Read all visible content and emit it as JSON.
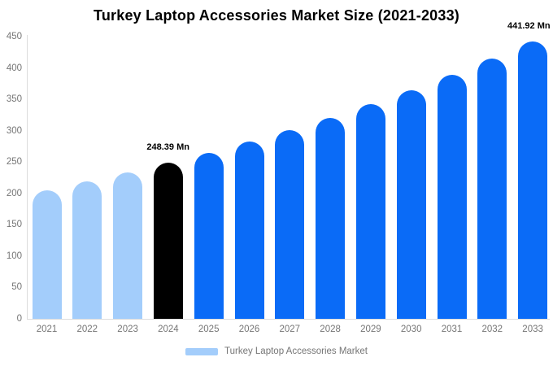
{
  "chart_data": {
    "type": "bar",
    "title": "Turkey Laptop Accessories Market Size (2021-2033)",
    "xlabel": "",
    "ylabel": "",
    "categories": [
      "2021",
      "2022",
      "2023",
      "2024",
      "2025",
      "2026",
      "2027",
      "2028",
      "2029",
      "2030",
      "2031",
      "2032",
      "2033"
    ],
    "values": [
      205.0,
      218.6,
      233.0,
      248.39,
      264.8,
      282.3,
      301.0,
      320.9,
      342.1,
      364.7,
      388.8,
      414.5,
      441.92
    ],
    "unit": "Mn",
    "ylim": [
      0,
      450
    ],
    "yticks": [
      0,
      50,
      100,
      150,
      200,
      250,
      300,
      350,
      400,
      450
    ],
    "grid": false,
    "point_colors": [
      "#a3cdfb",
      "#a3cdfb",
      "#a3cdfb",
      "#000000",
      "#0a6bf7",
      "#0a6bf7",
      "#0a6bf7",
      "#0a6bf7",
      "#0a6bf7",
      "#0a6bf7",
      "#0a6bf7",
      "#0a6bf7",
      "#0a6bf7"
    ],
    "annotations": [
      {
        "category": "2024",
        "text": "248.39 Mn"
      },
      {
        "category": "2033",
        "text": "441.92 Mn"
      }
    ],
    "legend": {
      "position": "bottom",
      "label": "Turkey Laptop Accessories Market",
      "swatch_color": "#a3cdfb"
    },
    "colors": {
      "past_bars": "#a3cdfb",
      "current_bar": "#000000",
      "forecast_bars": "#0a6bf7",
      "axis_line": "#dcdcdc",
      "tick_text": "#757575",
      "title_text": "#000000"
    }
  }
}
